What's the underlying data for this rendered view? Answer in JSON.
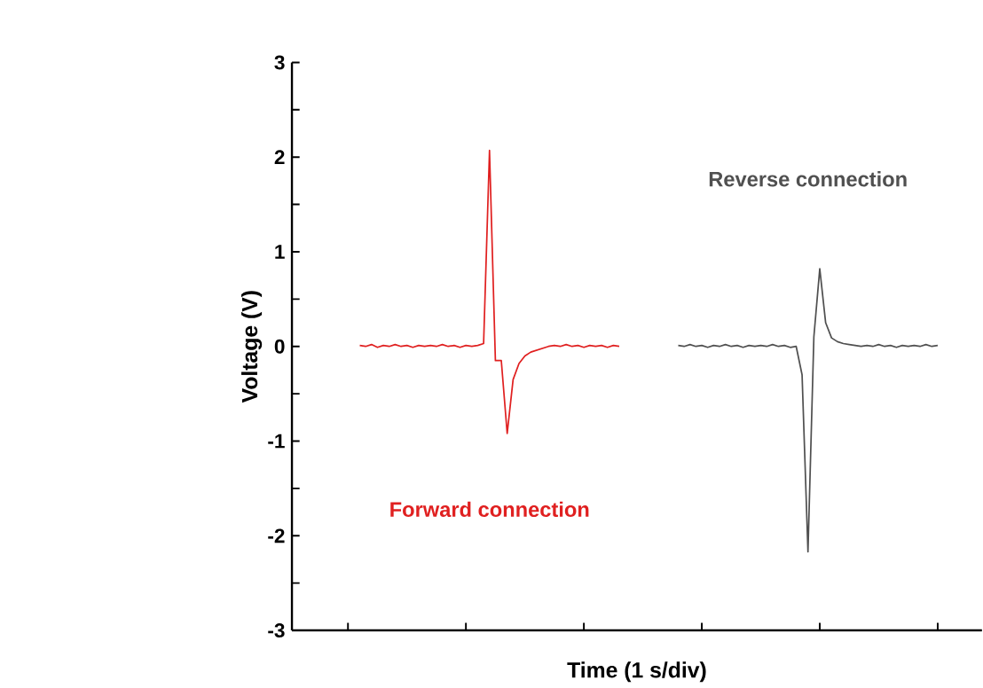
{
  "chart_data": {
    "type": "line",
    "xlabel": "Time (1 s/div)",
    "ylabel": "Voltage (V)",
    "categories": [
      null,
      null,
      null,
      null,
      null,
      null,
      null,
      null,
      null,
      null,
      null,
      null,
      null,
      null,
      null,
      null,
      null,
      null,
      null,
      null,
      null,
      null,
      null,
      null,
      null,
      null,
      null,
      null,
      null,
      null,
      null,
      null,
      null,
      null,
      null,
      null,
      null,
      null,
      null,
      null,
      null,
      null,
      null,
      null,
      null,
      null,
      null,
      null,
      null,
      null,
      null,
      null,
      null,
      null,
      null,
      null,
      null,
      null,
      null,
      null,
      null,
      null,
      null,
      null,
      null,
      null,
      null,
      null,
      null,
      null,
      null,
      null,
      null,
      null,
      null,
      null,
      null,
      null,
      null,
      null,
      null,
      null,
      null,
      null,
      null,
      null,
      null,
      null,
      null,
      null,
      null,
      null,
      null,
      null,
      null,
      null,
      null,
      null,
      null,
      null,
      null,
      null,
      null,
      null,
      null,
      null,
      null,
      null,
      null,
      null,
      null,
      null,
      null,
      null,
      null,
      null,
      null
    ],
    "ylim": [
      -3,
      3
    ],
    "yticks": [
      -3,
      {
        "value": -2.5,
        "label": null
      },
      -2,
      {
        "value": -1.5,
        "label": null
      },
      -1,
      {
        "value": -0.5,
        "label": null
      },
      0,
      {
        "value": 0.5,
        "label": null
      },
      1,
      {
        "value": 1.5,
        "label": null
      },
      2,
      {
        "value": 2.5,
        "label": null
      },
      3
    ],
    "grid": false,
    "legend": false,
    "marker": "none",
    "line_style": "solid",
    "series": [
      {
        "name": "Forward connection",
        "color": "#e02020",
        "values": [
          null,
          null,
          null,
          null,
          null,
          null,
          null,
          null,
          null,
          null,
          null,
          0.01,
          0.0,
          0.02,
          -0.01,
          0.01,
          0.0,
          0.02,
          0.0,
          0.01,
          -0.01,
          0.01,
          0.0,
          0.01,
          0.0,
          0.02,
          0.0,
          0.01,
          -0.01,
          0.01,
          0.0,
          0.01,
          0.03,
          2.07,
          -0.15,
          -0.15,
          -0.92,
          -0.35,
          -0.18,
          -0.1,
          -0.06,
          -0.04,
          -0.02,
          0.0,
          0.01,
          0.0,
          0.02,
          0.0,
          0.01,
          -0.01,
          0.01,
          0.0,
          0.01,
          -0.01,
          0.01,
          0.0,
          null,
          null,
          null,
          null,
          null,
          null,
          null,
          null,
          null,
          null,
          null,
          null,
          null,
          null,
          null,
          null,
          null,
          null,
          null,
          null,
          null,
          null,
          null,
          null,
          null,
          null,
          null,
          null,
          null,
          null,
          null,
          null,
          null,
          null,
          null,
          null,
          null,
          null,
          null,
          null,
          null,
          null,
          null,
          null,
          null,
          null,
          null,
          null,
          null,
          null,
          null,
          null,
          null,
          null,
          null,
          null,
          null,
          null,
          null,
          null,
          null
        ]
      },
      {
        "name": "Reverse connection",
        "color": "#505050",
        "values": [
          null,
          null,
          null,
          null,
          null,
          null,
          null,
          null,
          null,
          null,
          null,
          null,
          null,
          null,
          null,
          null,
          null,
          null,
          null,
          null,
          null,
          null,
          null,
          null,
          null,
          null,
          null,
          null,
          null,
          null,
          null,
          null,
          null,
          null,
          null,
          null,
          null,
          null,
          null,
          null,
          null,
          null,
          null,
          null,
          null,
          null,
          null,
          null,
          null,
          null,
          null,
          null,
          null,
          null,
          null,
          null,
          null,
          null,
          null,
          null,
          null,
          null,
          null,
          null,
          null,
          0.01,
          0.0,
          0.02,
          0.0,
          0.01,
          -0.01,
          0.01,
          0.0,
          0.02,
          0.0,
          0.01,
          -0.01,
          0.01,
          0.0,
          0.01,
          0.0,
          0.02,
          0.0,
          0.01,
          -0.01,
          0.0,
          -0.3,
          -2.17,
          0.1,
          0.82,
          0.25,
          0.09,
          0.05,
          0.03,
          0.02,
          0.01,
          0.0,
          0.01,
          0.0,
          0.02,
          0.0,
          0.01,
          -0.01,
          0.01,
          0.0,
          0.01,
          0.0,
          0.02,
          0.0,
          0.01,
          null,
          null,
          null,
          null,
          null,
          null,
          null
        ]
      }
    ]
  }
}
